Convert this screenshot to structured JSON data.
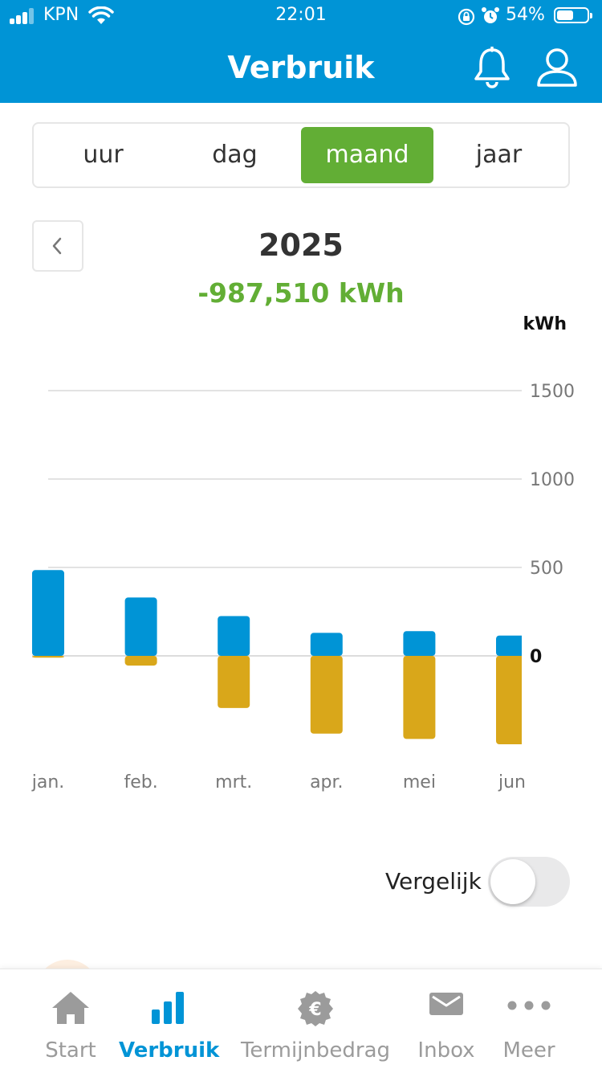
{
  "status_bar": {
    "carrier": "KPN",
    "time": "22:01",
    "battery": "54%"
  },
  "header": {
    "title": "Verbruik",
    "icons": [
      "bell-icon",
      "user-icon"
    ]
  },
  "period_tabs": [
    {
      "label": "uur",
      "active": false
    },
    {
      "label": "dag",
      "active": false
    },
    {
      "label": "maand",
      "active": true
    },
    {
      "label": "jaar",
      "active": false
    }
  ],
  "period": {
    "year": "2025",
    "total": "-987,510 kWh"
  },
  "chart_data": {
    "type": "bar",
    "stacked": true,
    "unit": "kWh",
    "categories": [
      "jan.",
      "feb.",
      "mrt.",
      "apr.",
      "mei",
      "jun"
    ],
    "series": [
      {
        "values": [
          485,
          330,
          225,
          130,
          140,
          115
        ],
        "color": "#0094d6"
      },
      {
        "values": [
          -10,
          -55,
          -295,
          -440,
          -470,
          -500
        ],
        "color": "#d9a71a"
      }
    ],
    "y_ticks": [
      "1500",
      "1000",
      "500",
      "0"
    ],
    "ylim": [
      -800,
      1500
    ],
    "grid": true
  },
  "compare": {
    "label": "Vergelijk",
    "enabled": false
  },
  "tab_bar": [
    {
      "label": "Start",
      "icon": "home-icon",
      "active": false
    },
    {
      "label": "Verbruik",
      "icon": "bar-chart-icon",
      "active": true
    },
    {
      "label": "Termijnbedrag",
      "icon": "euro-badge-icon",
      "active": false
    },
    {
      "label": "Inbox",
      "icon": "envelope-icon",
      "active": false
    },
    {
      "label": "Meer",
      "icon": "more-dots-icon",
      "active": false
    }
  ]
}
